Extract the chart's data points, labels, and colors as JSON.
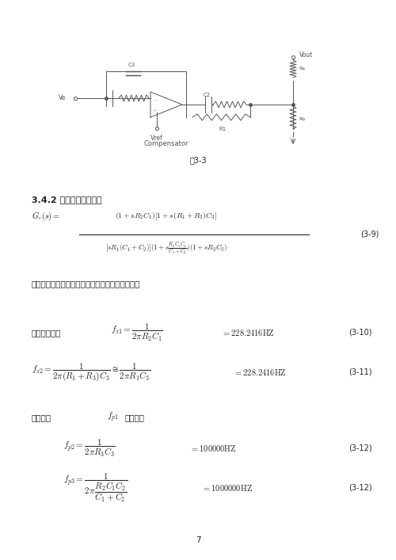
{
  "bg_color": "#ffffff",
  "page_width": 5.0,
  "page_height": 7.07,
  "fig_caption": "图3-3",
  "section_title": "3.4.2 补偿器的传递函数",
  "eq39_label": "(3-9)",
  "eq310_label": "(3-10)",
  "eq311_label": "(3-11)",
  "eq312a_label": "(3-12)",
  "eq312b_label": "(3-12)",
  "text_note": "有源超前一滞后补偿网络有两个零点和三个极点。",
  "zero_label": "零点公式为：",
  "pole_label": "极点为：",
  "fp1_text": "为原点，"
}
